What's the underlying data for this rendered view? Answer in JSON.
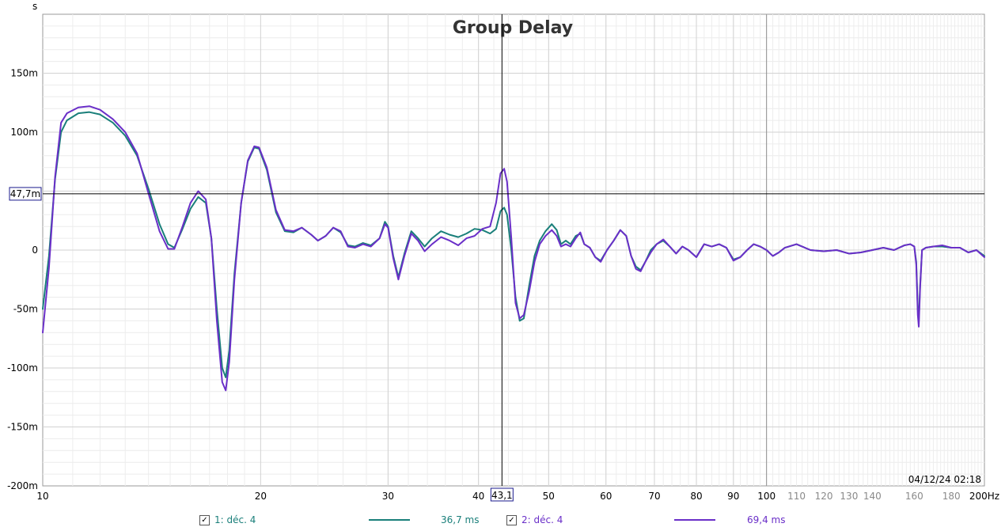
{
  "chart_data": {
    "type": "line",
    "title": "Group Delay",
    "yunit": "s",
    "xunit": "Hz",
    "xscale": "log",
    "xlim": [
      10,
      200
    ],
    "ylim": [
      -200,
      200
    ],
    "y_ticks": [
      {
        "v": 150,
        "label": "150m"
      },
      {
        "v": 100,
        "label": "100m"
      },
      {
        "v": 50,
        "label": "50m"
      },
      {
        "v": 0,
        "label": "0"
      },
      {
        "v": -50,
        "label": "-50m"
      },
      {
        "v": -100,
        "label": "-100m"
      },
      {
        "v": -150,
        "label": "-150m"
      },
      {
        "v": -200,
        "label": "-200m"
      }
    ],
    "x_ticks_major": [
      {
        "v": 10,
        "label": "10"
      },
      {
        "v": 20,
        "label": "20"
      },
      {
        "v": 30,
        "label": "30"
      },
      {
        "v": 40,
        "label": "40"
      },
      {
        "v": 50,
        "label": "50"
      },
      {
        "v": 60,
        "label": "60"
      },
      {
        "v": 70,
        "label": "70"
      },
      {
        "v": 80,
        "label": "80"
      },
      {
        "v": 90,
        "label": "90"
      },
      {
        "v": 100,
        "label": "100"
      }
    ],
    "x_ticks_minor": [
      {
        "v": 110,
        "label": "110"
      },
      {
        "v": 120,
        "label": "120"
      },
      {
        "v": 130,
        "label": "130"
      },
      {
        "v": 140,
        "label": "140"
      },
      {
        "v": 160,
        "label": "160"
      },
      {
        "v": 180,
        "label": "180"
      }
    ],
    "x_end_label": "200Hz",
    "cursor": {
      "x": 43.1,
      "x_label": "43,1",
      "y": 47.7,
      "y_label": "47,7m"
    },
    "timestamp": "04/12/24 02:18",
    "grid": true,
    "series": [
      {
        "name": "1: déc. 4",
        "readout": "36,7 ms",
        "color": "#1a7f7a",
        "points": [
          [
            10,
            -50
          ],
          [
            10.2,
            -5
          ],
          [
            10.4,
            60
          ],
          [
            10.6,
            100
          ],
          [
            10.8,
            110
          ],
          [
            11.2,
            116
          ],
          [
            11.6,
            117
          ],
          [
            12,
            115
          ],
          [
            12.5,
            108
          ],
          [
            13,
            97
          ],
          [
            13.5,
            80
          ],
          [
            14,
            52
          ],
          [
            14.5,
            22
          ],
          [
            14.9,
            5
          ],
          [
            15.2,
            2
          ],
          [
            15.6,
            18
          ],
          [
            16,
            35
          ],
          [
            16.4,
            45
          ],
          [
            16.8,
            40
          ],
          [
            17.1,
            10
          ],
          [
            17.4,
            -50
          ],
          [
            17.7,
            -100
          ],
          [
            17.9,
            -108
          ],
          [
            18.1,
            -85
          ],
          [
            18.4,
            -20
          ],
          [
            18.8,
            40
          ],
          [
            19.2,
            75
          ],
          [
            19.6,
            87
          ],
          [
            19.9,
            86
          ],
          [
            20.4,
            68
          ],
          [
            21,
            32
          ],
          [
            21.6,
            16
          ],
          [
            22.2,
            15
          ],
          [
            22.8,
            19
          ],
          [
            23.5,
            13
          ],
          [
            24,
            8
          ],
          [
            24.6,
            12
          ],
          [
            25.2,
            19
          ],
          [
            25.8,
            15
          ],
          [
            26.4,
            4
          ],
          [
            27,
            3
          ],
          [
            27.7,
            6
          ],
          [
            28.4,
            4
          ],
          [
            29.2,
            10
          ],
          [
            29.7,
            24
          ],
          [
            30,
            20
          ],
          [
            30.5,
            -5
          ],
          [
            31,
            -23
          ],
          [
            31.6,
            -3
          ],
          [
            32.3,
            16
          ],
          [
            33,
            10
          ],
          [
            33.7,
            3
          ],
          [
            34.5,
            10
          ],
          [
            35.5,
            16
          ],
          [
            36.5,
            13
          ],
          [
            37.5,
            11
          ],
          [
            38.5,
            14
          ],
          [
            39.5,
            18
          ],
          [
            40.5,
            17
          ],
          [
            41.5,
            14
          ],
          [
            42.3,
            18
          ],
          [
            42.9,
            33
          ],
          [
            43.4,
            36
          ],
          [
            43.8,
            30
          ],
          [
            44.4,
            0
          ],
          [
            45,
            -40
          ],
          [
            45.6,
            -60
          ],
          [
            46.2,
            -58
          ],
          [
            47,
            -30
          ],
          [
            47.8,
            -5
          ],
          [
            48.6,
            8
          ],
          [
            49.5,
            16
          ],
          [
            50.5,
            22
          ],
          [
            51.3,
            17
          ],
          [
            52,
            5
          ],
          [
            52.8,
            8
          ],
          [
            53.6,
            5
          ],
          [
            54.5,
            12
          ],
          [
            55.3,
            14
          ],
          [
            56,
            5
          ],
          [
            57,
            2
          ],
          [
            58,
            -6
          ],
          [
            59,
            -9
          ],
          [
            60.2,
            0
          ],
          [
            61.5,
            8
          ],
          [
            62.8,
            17
          ],
          [
            64,
            12
          ],
          [
            65,
            -5
          ],
          [
            66,
            -14
          ],
          [
            67,
            -17
          ],
          [
            68,
            -10
          ],
          [
            69.2,
            0
          ],
          [
            70.5,
            5
          ],
          [
            72,
            8
          ],
          [
            73.5,
            3
          ],
          [
            75,
            -3
          ],
          [
            76.5,
            3
          ],
          [
            78,
            0
          ],
          [
            80,
            -6
          ],
          [
            82,
            5
          ],
          [
            84,
            3
          ],
          [
            86,
            5
          ],
          [
            88,
            2
          ],
          [
            90,
            -8
          ],
          [
            92,
            -6
          ],
          [
            94,
            0
          ],
          [
            96,
            5
          ],
          [
            98,
            3
          ],
          [
            100,
            0
          ],
          [
            102,
            -5
          ],
          [
            104,
            -2
          ],
          [
            106,
            2
          ],
          [
            110,
            5
          ],
          [
            115,
            0
          ],
          [
            120,
            -1
          ],
          [
            125,
            0
          ],
          [
            130,
            -3
          ],
          [
            135,
            -2
          ],
          [
            140,
            0
          ],
          [
            145,
            2
          ],
          [
            150,
            0
          ],
          [
            155,
            4
          ],
          [
            158,
            5
          ],
          [
            160,
            3
          ],
          [
            161,
            -10
          ],
          [
            161.8,
            -50
          ],
          [
            162.3,
            -60
          ],
          [
            163,
            -30
          ],
          [
            164,
            0
          ],
          [
            166,
            2
          ],
          [
            170,
            3
          ],
          [
            175,
            3
          ],
          [
            180,
            2
          ],
          [
            185,
            2
          ],
          [
            190,
            -2
          ],
          [
            195,
            0
          ],
          [
            200,
            -5
          ]
        ]
      },
      {
        "name": "2: déc. 4",
        "readout": "69,4 ms",
        "color": "#6a2fc8",
        "points": [
          [
            10,
            -70
          ],
          [
            10.2,
            -15
          ],
          [
            10.4,
            62
          ],
          [
            10.6,
            108
          ],
          [
            10.8,
            116
          ],
          [
            11.2,
            121
          ],
          [
            11.6,
            122
          ],
          [
            12,
            119
          ],
          [
            12.5,
            111
          ],
          [
            13,
            100
          ],
          [
            13.5,
            82
          ],
          [
            14,
            48
          ],
          [
            14.5,
            16
          ],
          [
            14.9,
            1
          ],
          [
            15.2,
            1
          ],
          [
            15.6,
            20
          ],
          [
            16,
            40
          ],
          [
            16.4,
            50
          ],
          [
            16.8,
            43
          ],
          [
            17.1,
            10
          ],
          [
            17.4,
            -60
          ],
          [
            17.7,
            -112
          ],
          [
            17.9,
            -119
          ],
          [
            18.1,
            -95
          ],
          [
            18.4,
            -25
          ],
          [
            18.8,
            40
          ],
          [
            19.2,
            76
          ],
          [
            19.6,
            88
          ],
          [
            19.9,
            87
          ],
          [
            20.4,
            70
          ],
          [
            21,
            34
          ],
          [
            21.6,
            17
          ],
          [
            22.2,
            16
          ],
          [
            22.8,
            19
          ],
          [
            23.5,
            13
          ],
          [
            24,
            8
          ],
          [
            24.6,
            12
          ],
          [
            25.2,
            19
          ],
          [
            25.8,
            16
          ],
          [
            26.4,
            3
          ],
          [
            27,
            2
          ],
          [
            27.7,
            5
          ],
          [
            28.4,
            3
          ],
          [
            29.2,
            10
          ],
          [
            29.7,
            22
          ],
          [
            30,
            19
          ],
          [
            30.5,
            -7
          ],
          [
            31,
            -25
          ],
          [
            31.6,
            -5
          ],
          [
            32.3,
            14
          ],
          [
            33,
            8
          ],
          [
            33.7,
            -1
          ],
          [
            34.5,
            5
          ],
          [
            35.5,
            11
          ],
          [
            36.5,
            8
          ],
          [
            37.5,
            4
          ],
          [
            38.5,
            10
          ],
          [
            39.5,
            12
          ],
          [
            40.5,
            18
          ],
          [
            41.5,
            20
          ],
          [
            42.3,
            40
          ],
          [
            42.9,
            65
          ],
          [
            43.4,
            69
          ],
          [
            43.8,
            58
          ],
          [
            44.4,
            10
          ],
          [
            45,
            -45
          ],
          [
            45.6,
            -58
          ],
          [
            46.2,
            -55
          ],
          [
            47,
            -35
          ],
          [
            47.8,
            -10
          ],
          [
            48.6,
            5
          ],
          [
            49.5,
            12
          ],
          [
            50.5,
            17
          ],
          [
            51.3,
            12
          ],
          [
            52,
            3
          ],
          [
            52.8,
            5
          ],
          [
            53.6,
            3
          ],
          [
            54.5,
            10
          ],
          [
            55.3,
            15
          ],
          [
            56,
            5
          ],
          [
            57,
            2
          ],
          [
            58,
            -6
          ],
          [
            59,
            -10
          ],
          [
            60.2,
            0
          ],
          [
            61.5,
            8
          ],
          [
            62.8,
            17
          ],
          [
            64,
            12
          ],
          [
            65,
            -5
          ],
          [
            66,
            -16
          ],
          [
            67,
            -18
          ],
          [
            68,
            -10
          ],
          [
            69.2,
            -2
          ],
          [
            70.5,
            5
          ],
          [
            72,
            9
          ],
          [
            73.5,
            3
          ],
          [
            75,
            -3
          ],
          [
            76.5,
            3
          ],
          [
            78,
            0
          ],
          [
            80,
            -6
          ],
          [
            82,
            5
          ],
          [
            84,
            3
          ],
          [
            86,
            5
          ],
          [
            88,
            2
          ],
          [
            90,
            -9
          ],
          [
            92,
            -6
          ],
          [
            94,
            0
          ],
          [
            96,
            5
          ],
          [
            98,
            3
          ],
          [
            100,
            0
          ],
          [
            102,
            -5
          ],
          [
            104,
            -2
          ],
          [
            106,
            2
          ],
          [
            110,
            5
          ],
          [
            115,
            0
          ],
          [
            120,
            -1
          ],
          [
            125,
            0
          ],
          [
            130,
            -3
          ],
          [
            135,
            -2
          ],
          [
            140,
            0
          ],
          [
            145,
            2
          ],
          [
            150,
            0
          ],
          [
            155,
            4
          ],
          [
            158,
            5
          ],
          [
            160,
            3
          ],
          [
            161,
            -12
          ],
          [
            161.8,
            -55
          ],
          [
            162.3,
            -65
          ],
          [
            163,
            -32
          ],
          [
            164,
            0
          ],
          [
            166,
            2
          ],
          [
            170,
            3
          ],
          [
            175,
            4
          ],
          [
            180,
            2
          ],
          [
            185,
            2
          ],
          [
            190,
            -2
          ],
          [
            195,
            0
          ],
          [
            200,
            -6
          ]
        ]
      }
    ]
  }
}
